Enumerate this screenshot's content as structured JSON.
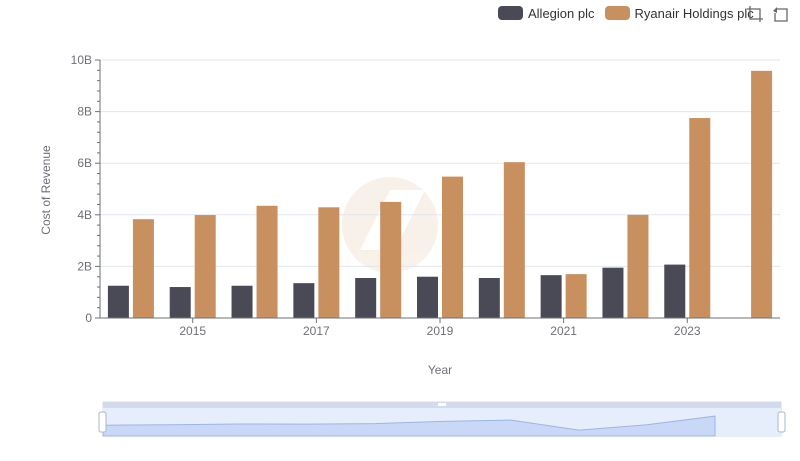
{
  "chart_data": {
    "type": "bar",
    "title": "",
    "xlabel": "Year",
    "ylabel": "Cost of Revenue",
    "x": [
      2014,
      2015,
      2016,
      2017,
      2018,
      2019,
      2020,
      2021,
      2022,
      2023,
      2024
    ],
    "x_tick_labels": [
      "2015",
      "2017",
      "2019",
      "2021",
      "2023"
    ],
    "y_tick_labels": [
      "0",
      "2B",
      "4B",
      "6B",
      "8B",
      "10B"
    ],
    "ylim": [
      0,
      10000000000
    ],
    "grid": true,
    "legend_position": "top-right",
    "series": [
      {
        "name": "Allegion plc",
        "color": "#4a4a56",
        "values": [
          1250000000,
          1200000000,
          1250000000,
          1350000000,
          1550000000,
          1600000000,
          1550000000,
          1660000000,
          1950000000,
          2070000000,
          null
        ]
      },
      {
        "name": "Ryanair Holdings plc",
        "color": "#c8905e",
        "values": [
          3830000000,
          3990000000,
          4350000000,
          4290000000,
          4500000000,
          5480000000,
          6040000000,
          1700000000,
          4000000000,
          7750000000,
          9580000000
        ]
      }
    ]
  },
  "toolbox": {
    "zoom_icon": "zoom-icon",
    "restore_icon": "restore-icon"
  }
}
